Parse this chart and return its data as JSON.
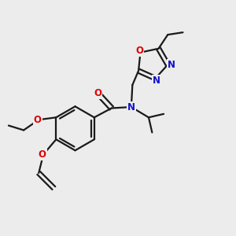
{
  "bg_color": "#ececec",
  "bond_color": "#1a1a1a",
  "bond_width": 1.6,
  "atom_colors": {
    "O": "#dd0000",
    "N": "#1111cc",
    "C": "#1a1a1a"
  },
  "font_size_atom": 8.5,
  "font_size_small": 7.0
}
